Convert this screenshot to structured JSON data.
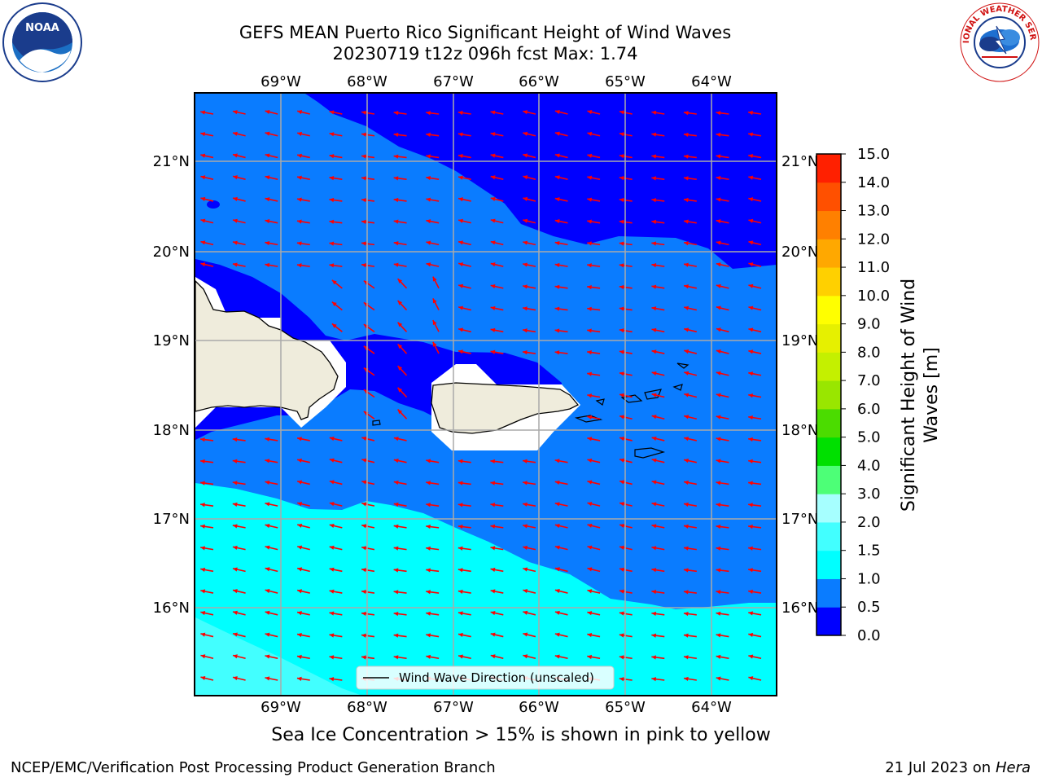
{
  "title_line1": "GEFS MEAN Puerto Rico Significant Height of Wind Waves",
  "title_line2": "20230719 t12z 096h fcst   Max: 1.74",
  "map": {
    "lon_labels": [
      "69°W",
      "68°W",
      "67°W",
      "66°W",
      "65°W",
      "64°W"
    ],
    "lat_labels": [
      "21°N",
      "20°N",
      "19°N",
      "18°N",
      "17°N",
      "16°N"
    ],
    "legend_label": "Wind Wave Direction (unscaled)",
    "arrow_color": "#ff0000",
    "land_color": "#efecdc"
  },
  "colorbar": {
    "label_line1": "Significant Height of Wind",
    "label_line2": "Waves [m]",
    "levels": [
      "0.0",
      "0.5",
      "1.0",
      "1.5",
      "2.0",
      "3.0",
      "4.0",
      "5.0",
      "6.0",
      "7.0",
      "8.0",
      "9.0",
      "10.0",
      "11.0",
      "12.0",
      "13.0",
      "14.0",
      "15.0"
    ],
    "colors": [
      "#0000ff",
      "#0a7cff",
      "#00ffff",
      "#42ffff",
      "#a6ffff",
      "#4dff77",
      "#00e000",
      "#4bdc00",
      "#99e600",
      "#c4f000",
      "#e6f000",
      "#ffff00",
      "#ffd000",
      "#ffa800",
      "#ff8000",
      "#ff5000",
      "#ff2000"
    ]
  },
  "note": "Sea Ice Concentration > 15% is shown in pink to yellow",
  "footer_left": "NCEP/EMC/Verification Post Processing Product Generation Branch",
  "footer_right_prefix": "21 Jul 2023 on ",
  "footer_right_machine": "Hera",
  "logos": {
    "noaa_text": "NOAA",
    "nws_text": "NATIONAL WEATHER SERVICE"
  }
}
